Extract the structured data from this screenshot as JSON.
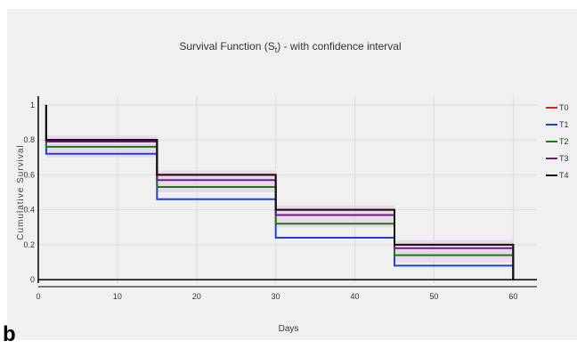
{
  "panel_label": "b",
  "chart_data": {
    "type": "line",
    "step": true,
    "title": "Survival Function (S",
    "title_subscript": "t",
    "title_suffix": ") - with confidence interval",
    "xlabel": "Days",
    "ylabel": "Cumulative Survival",
    "xlim": [
      0,
      63
    ],
    "ylim": [
      -0.02,
      1.05
    ],
    "x_ticks": [
      0,
      10,
      20,
      30,
      40,
      50,
      60
    ],
    "y_ticks": [
      0,
      0.2,
      0.4,
      0.6,
      0.8,
      1
    ],
    "grid": true,
    "legend_position": "right",
    "ci_band_color": "#e6cfe6",
    "x": [
      1,
      15,
      30,
      45,
      60
    ],
    "series": [
      {
        "name": "T0",
        "color": "#e41a1c",
        "values": [
          0.8,
          0.6,
          0.4,
          0.2,
          0.0
        ]
      },
      {
        "name": "T1",
        "color": "#1f3fd6",
        "values": [
          0.72,
          0.46,
          0.24,
          0.08,
          0.0
        ]
      },
      {
        "name": "T2",
        "color": "#1a7a1a",
        "values": [
          0.76,
          0.53,
          0.32,
          0.14,
          0.0
        ]
      },
      {
        "name": "T3",
        "color": "#6a1b8a",
        "values": [
          0.79,
          0.57,
          0.37,
          0.18,
          0.0
        ]
      },
      {
        "name": "T4",
        "color": "#111111",
        "values": [
          0.8,
          0.6,
          0.4,
          0.2,
          0.0
        ]
      }
    ]
  }
}
